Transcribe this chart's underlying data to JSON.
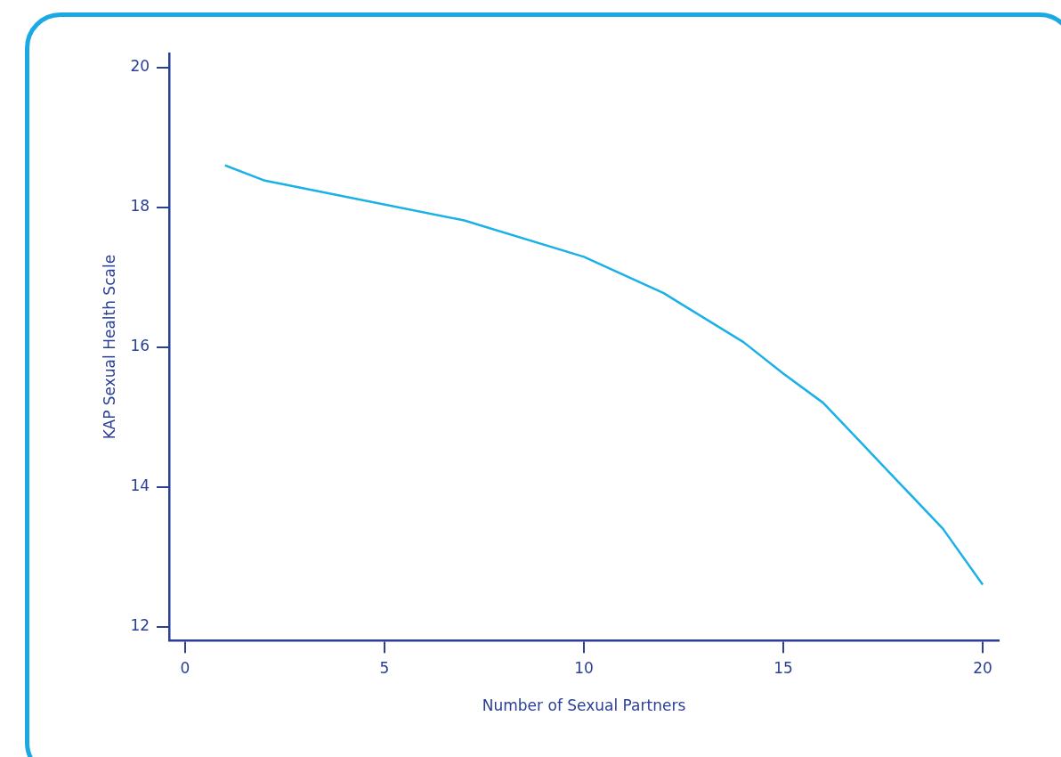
{
  "chart_data": {
    "type": "line",
    "xlabel": "Number of Sexual Partners",
    "ylabel": "KAP Sexual Health Scale",
    "x": [
      1,
      2,
      7,
      10,
      12,
      14,
      15,
      16,
      17,
      18,
      19,
      20
    ],
    "series": [
      {
        "color": "#1ab0e8",
        "values": [
          18.6,
          18.38,
          17.81,
          17.29,
          16.77,
          16.07,
          15.62,
          15.2,
          14.6,
          14.0,
          13.4,
          12.6
        ]
      }
    ],
    "xlim": [
      -0.4,
      20.4
    ],
    "xticks": [
      0,
      5,
      10,
      15,
      20
    ],
    "ylim": [
      11.8,
      20.2
    ],
    "yticks": [
      12,
      14,
      16,
      18,
      20
    ],
    "grid": false,
    "legend": false,
    "marker": "none",
    "line_style": "solid"
  }
}
